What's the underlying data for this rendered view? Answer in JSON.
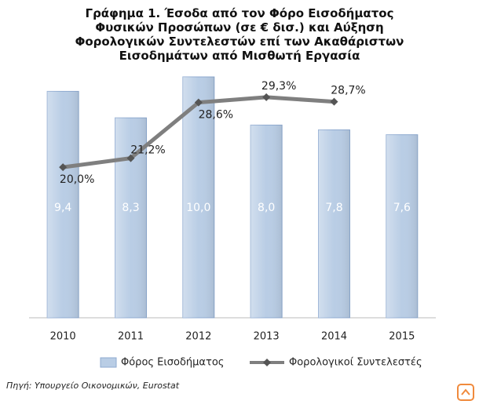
{
  "chart_data": {
    "type": "bar",
    "title": "Γράφημα 1. Έσοδα από τον Φόρο Εισοδήματος Φυσικών Προσώπων  (σε € δισ.) και Αύξηση Φορολογικών Συντελεστών επί των Ακαθάριστων Εισοδημάτων από Μισθωτή Εργασία",
    "categories": [
      "2010",
      "2011",
      "2012",
      "2013",
      "2014",
      "2015"
    ],
    "series": [
      {
        "name": "Φόρος Εισοδήματος",
        "color": "#b9cde5",
        "values": [
          9.4,
          8.3,
          10.0,
          8.0,
          7.8,
          7.6
        ],
        "value_labels": [
          "9,4",
          "8,3",
          "10,0",
          "8,0",
          "7,8",
          "7,6"
        ]
      },
      {
        "name": "Φορολογικοί Συντελεστές",
        "type": "line",
        "axis": "y2",
        "color": "#7f7f7f",
        "values": [
          20.0,
          21.2,
          28.6,
          29.3,
          28.7,
          null
        ],
        "value_labels": [
          "20,0%",
          "21,2%",
          "28,6%",
          "29,3%",
          "28,7%",
          null
        ]
      }
    ],
    "ylim": [
      0,
      10
    ],
    "y2lim": [
      0,
      32
    ],
    "source": "Πηγή: Υπουργείο Οικονομικών, Eurostat"
  }
}
